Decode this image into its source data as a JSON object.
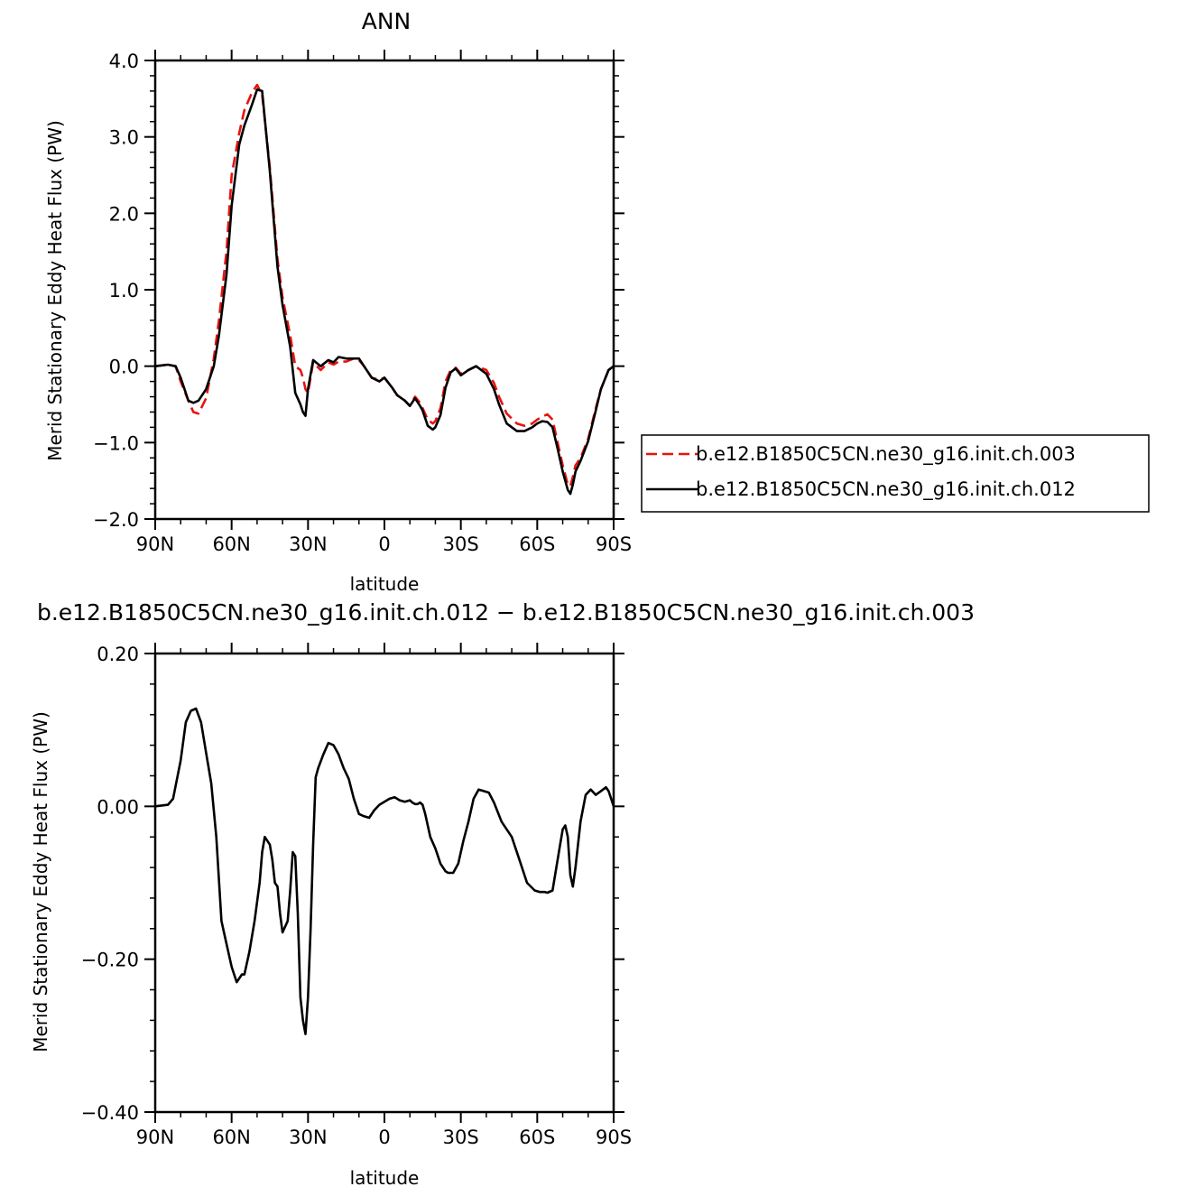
{
  "chart_data": [
    {
      "type": "line",
      "title": "ANN",
      "xlabel": "latitude",
      "ylabel": "Merid Stationary Eddy Heat Flux (PW)",
      "xlim": [
        90,
        -90
      ],
      "ylim": [
        -2.0,
        4.0
      ],
      "x_ticks": [
        90,
        60,
        30,
        0,
        -30,
        -60,
        -90
      ],
      "x_tick_labels": [
        "90N",
        "60N",
        "30N",
        "0",
        "30S",
        "60S",
        "90S"
      ],
      "y_ticks": [
        -2.0,
        -1.0,
        0.0,
        1.0,
        2.0,
        3.0,
        4.0
      ],
      "y_tick_labels": [
        "−2.0",
        "−1.0",
        "0.0",
        "1.0",
        "2.0",
        "3.0",
        "4.0"
      ],
      "legend_position": "right",
      "series": [
        {
          "name": "b.e12.B1850C5CN.ne30_g16.init.ch.003",
          "color": "#e8130f",
          "dash": "dashed",
          "x": [
            90,
            85,
            82,
            80,
            77,
            75,
            73,
            70,
            67,
            65,
            62,
            60,
            57,
            55,
            52,
            50,
            48,
            45,
            42,
            40,
            37,
            35,
            33,
            32,
            31,
            30,
            28,
            25,
            22,
            20,
            18,
            15,
            12,
            10,
            8,
            5,
            2,
            0,
            -3,
            -5,
            -8,
            -10,
            -12,
            -14,
            -15,
            -17,
            -19,
            -20,
            -22,
            -24,
            -26,
            -28,
            -30,
            -33,
            -36,
            -40,
            -43,
            -45,
            -48,
            -52,
            -55,
            -58,
            -60,
            -62,
            -64,
            -66,
            -68,
            -70,
            -72,
            -73,
            -74,
            -75,
            -77,
            -80,
            -83,
            -85,
            -88,
            -90
          ],
          "values": [
            0.0,
            0.02,
            0.0,
            -0.2,
            -0.45,
            -0.6,
            -0.62,
            -0.42,
            0.1,
            0.6,
            1.5,
            2.5,
            3.05,
            3.35,
            3.58,
            3.68,
            3.55,
            2.6,
            1.4,
            0.9,
            0.4,
            0.0,
            -0.05,
            -0.15,
            -0.3,
            -0.35,
            0.05,
            -0.05,
            0.05,
            0.02,
            0.06,
            0.06,
            0.1,
            0.08,
            0.0,
            -0.15,
            -0.18,
            -0.15,
            -0.28,
            -0.38,
            -0.45,
            -0.52,
            -0.4,
            -0.48,
            -0.55,
            -0.7,
            -0.75,
            -0.72,
            -0.55,
            -0.2,
            -0.05,
            -0.02,
            -0.1,
            -0.05,
            0.0,
            -0.05,
            -0.22,
            -0.4,
            -0.62,
            -0.75,
            -0.78,
            -0.75,
            -0.7,
            -0.66,
            -0.63,
            -0.7,
            -1.0,
            -1.3,
            -1.55,
            -1.57,
            -1.45,
            -1.3,
            -1.2,
            -0.95,
            -0.55,
            -0.3,
            -0.05,
            0.0
          ]
        },
        {
          "name": "b.e12.B1850C5CN.ne30_g16.init.ch.012",
          "color": "#000000",
          "dash": "solid",
          "x": [
            90,
            85,
            82,
            80,
            77,
            75,
            73,
            70,
            67,
            65,
            62,
            60,
            57,
            55,
            52,
            50,
            48,
            45,
            42,
            40,
            37,
            35,
            33,
            32,
            31,
            30,
            28,
            25,
            22,
            20,
            18,
            15,
            12,
            10,
            8,
            5,
            2,
            0,
            -3,
            -5,
            -8,
            -10,
            -12,
            -14,
            -15,
            -17,
            -19,
            -20,
            -22,
            -24,
            -26,
            -28,
            -30,
            -33,
            -36,
            -40,
            -43,
            -45,
            -48,
            -52,
            -55,
            -58,
            -60,
            -62,
            -64,
            -66,
            -68,
            -70,
            -72,
            -73,
            -74,
            -75,
            -77,
            -80,
            -83,
            -85,
            -88,
            -90
          ],
          "values": [
            0.0,
            0.02,
            0.0,
            -0.15,
            -0.45,
            -0.48,
            -0.45,
            -0.3,
            0.0,
            0.4,
            1.2,
            2.1,
            2.9,
            3.15,
            3.42,
            3.62,
            3.6,
            2.55,
            1.3,
            0.8,
            0.25,
            -0.35,
            -0.5,
            -0.6,
            -0.65,
            -0.3,
            0.08,
            0.0,
            0.08,
            0.05,
            0.12,
            0.1,
            0.1,
            0.1,
            0.0,
            -0.15,
            -0.2,
            -0.15,
            -0.28,
            -0.38,
            -0.45,
            -0.52,
            -0.42,
            -0.52,
            -0.58,
            -0.78,
            -0.83,
            -0.8,
            -0.64,
            -0.28,
            -0.08,
            -0.03,
            -0.12,
            -0.05,
            0.0,
            -0.1,
            -0.3,
            -0.5,
            -0.75,
            -0.85,
            -0.85,
            -0.8,
            -0.75,
            -0.72,
            -0.73,
            -0.8,
            -1.08,
            -1.38,
            -1.62,
            -1.67,
            -1.55,
            -1.38,
            -1.24,
            -0.98,
            -0.58,
            -0.3,
            -0.05,
            0.0
          ]
        }
      ]
    },
    {
      "type": "line",
      "title": "b.e12.B1850C5CN.ne30_g16.init.ch.012 − b.e12.B1850C5CN.ne30_g16.init.ch.003",
      "xlabel": "latitude",
      "ylabel": "Merid Stationary Eddy Heat Flux (PW)",
      "xlim": [
        90,
        -90
      ],
      "ylim": [
        -0.4,
        0.2
      ],
      "x_ticks": [
        90,
        60,
        30,
        0,
        -30,
        -60,
        -90
      ],
      "x_tick_labels": [
        "90N",
        "60N",
        "30N",
        "0",
        "30S",
        "60S",
        "90S"
      ],
      "y_ticks": [
        -0.4,
        -0.2,
        0.0,
        0.2
      ],
      "y_tick_labels": [
        "−0.40",
        "−0.20",
        "0.00",
        "0.20"
      ],
      "series": [
        {
          "color": "#000000",
          "dash": "solid",
          "x": [
            90,
            85,
            83,
            80,
            78,
            76,
            74,
            72,
            70,
            68,
            66,
            64,
            62,
            60,
            58,
            56,
            55,
            53,
            51,
            49,
            48,
            47,
            45,
            44,
            43,
            42,
            41,
            40,
            38,
            37,
            36,
            35,
            34,
            33,
            32,
            31,
            30,
            29,
            28,
            27,
            26,
            24,
            22,
            20,
            18,
            16,
            14,
            12,
            10,
            8,
            6,
            4,
            2,
            0,
            -2,
            -4,
            -6,
            -8,
            -10,
            -11,
            -12,
            -13,
            -14,
            -15,
            -16,
            -17,
            -18,
            -20,
            -21,
            -22,
            -24,
            -25,
            -27,
            -29,
            -31,
            -33,
            -35,
            -37,
            -39,
            -41,
            -43,
            -46,
            -50,
            -53,
            -56,
            -59,
            -61,
            -63,
            -64,
            -66,
            -67,
            -69,
            -70,
            -71,
            -72,
            -73,
            -74,
            -75,
            -77,
            -79,
            -81,
            -83,
            -85,
            -87,
            -88,
            -90
          ],
          "values": [
            0.0,
            0.002,
            0.01,
            0.06,
            0.11,
            0.125,
            0.128,
            0.11,
            0.07,
            0.03,
            -0.04,
            -0.15,
            -0.18,
            -0.21,
            -0.23,
            -0.22,
            -0.22,
            -0.19,
            -0.15,
            -0.1,
            -0.06,
            -0.04,
            -0.05,
            -0.07,
            -0.1,
            -0.105,
            -0.14,
            -0.165,
            -0.15,
            -0.11,
            -0.06,
            -0.065,
            -0.14,
            -0.25,
            -0.28,
            -0.298,
            -0.25,
            -0.16,
            -0.05,
            0.038,
            0.05,
            0.068,
            0.083,
            0.08,
            0.068,
            0.05,
            0.036,
            0.01,
            -0.01,
            -0.013,
            -0.015,
            -0.005,
            0.002,
            0.006,
            0.01,
            0.012,
            0.008,
            0.006,
            0.008,
            0.005,
            0.003,
            0.003,
            0.005,
            0.002,
            -0.01,
            -0.025,
            -0.04,
            -0.055,
            -0.065,
            -0.075,
            -0.085,
            -0.087,
            -0.087,
            -0.075,
            -0.045,
            -0.02,
            0.01,
            0.022,
            0.02,
            0.018,
            0.005,
            -0.02,
            -0.04,
            -0.07,
            -0.1,
            -0.11,
            -0.112,
            -0.112,
            -0.113,
            -0.11,
            -0.09,
            -0.05,
            -0.03,
            -0.025,
            -0.04,
            -0.09,
            -0.105,
            -0.08,
            -0.02,
            0.015,
            0.022,
            0.015,
            0.02,
            0.025,
            0.02,
            0.0
          ]
        }
      ]
    }
  ]
}
